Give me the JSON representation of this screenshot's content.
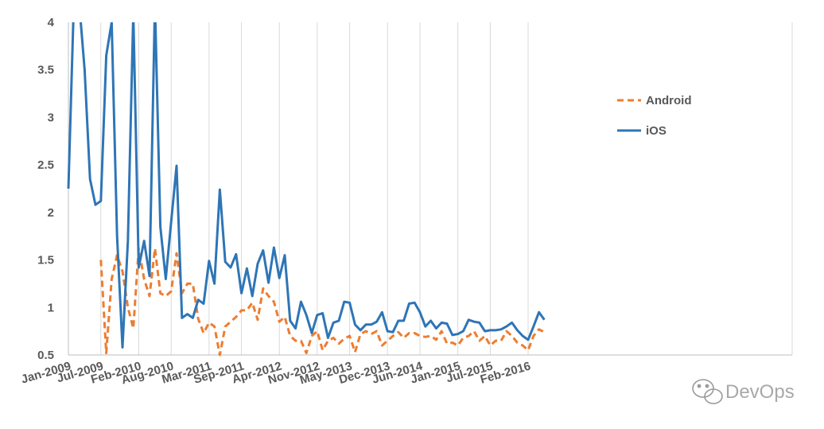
{
  "chart_data": {
    "type": "line",
    "title": "",
    "xlabel": "",
    "ylabel": "",
    "ylim": [
      0.5,
      4
    ],
    "ytick_labels": [
      "0.5",
      "1",
      "1.5",
      "2",
      "2.5",
      "3",
      "3.5",
      "4"
    ],
    "ytick_values": [
      0.5,
      1,
      1.5,
      2,
      2.5,
      3,
      3.5,
      4
    ],
    "x_start": "Jan-2009",
    "x_count": 89,
    "xtick_labels": [
      "Jan-2009",
      "Jul-2009",
      "Feb-2010",
      "Aug-2010",
      "Mar-2011",
      "Sep-2011",
      "Apr-2012",
      "Nov-2012",
      "May-2013",
      "Dec-2013",
      "Jun-2014",
      "Jan-2015",
      "Jul-2015",
      "Feb-2016"
    ],
    "xtick_index": [
      0,
      6,
      13,
      19,
      26,
      32,
      39,
      46,
      52,
      59,
      65,
      72,
      78,
      85
    ],
    "grid": "vertical",
    "legend_position": "top-right",
    "series": [
      {
        "name": "Android",
        "color": "#ED7D31",
        "dash": "dashed",
        "values": [
          null,
          null,
          null,
          null,
          null,
          null,
          1.5,
          0.52,
          1.3,
          1.55,
          1.38,
          1.0,
          0.78,
          1.62,
          1.3,
          1.12,
          1.62,
          1.15,
          1.12,
          1.17,
          1.57,
          1.15,
          1.25,
          1.25,
          0.88,
          0.73,
          0.84,
          0.8,
          0.5,
          0.8,
          0.85,
          0.9,
          0.97,
          0.97,
          1.05,
          0.87,
          1.2,
          1.12,
          1.06,
          0.85,
          0.9,
          0.7,
          0.65,
          0.65,
          0.52,
          0.7,
          0.75,
          0.55,
          0.65,
          0.68,
          0.62,
          0.67,
          0.7,
          0.53,
          0.72,
          0.75,
          0.72,
          0.75,
          0.6,
          0.65,
          0.7,
          0.74,
          0.68,
          0.73,
          0.73,
          0.7,
          0.69,
          0.7,
          0.66,
          0.75,
          0.62,
          0.63,
          0.6,
          0.68,
          0.7,
          0.75,
          0.65,
          0.7,
          0.6,
          0.65,
          0.65,
          0.75,
          0.7,
          0.63,
          0.6,
          0.55,
          0.7,
          0.77,
          0.74
        ]
      },
      {
        "name": "iOS",
        "color": "#2E75B6",
        "dash": "solid",
        "values": [
          2.25,
          4.2,
          4.2,
          3.5,
          2.35,
          2.08,
          2.12,
          3.65,
          4.0,
          1.75,
          0.58,
          1.7,
          4.1,
          1.42,
          1.7,
          1.33,
          4.2,
          1.85,
          1.3,
          1.9,
          2.49,
          0.89,
          0.93,
          0.89,
          1.08,
          1.04,
          1.49,
          1.25,
          2.24,
          1.48,
          1.42,
          1.56,
          1.15,
          1.41,
          1.12,
          1.46,
          1.6,
          1.26,
          1.63,
          1.31,
          1.55,
          0.86,
          0.78,
          1.06,
          0.92,
          0.73,
          0.92,
          0.94,
          0.68,
          0.84,
          0.86,
          1.06,
          1.05,
          0.82,
          0.76,
          0.82,
          0.82,
          0.85,
          0.95,
          0.75,
          0.74,
          0.86,
          0.86,
          1.04,
          1.05,
          0.95,
          0.8,
          0.86,
          0.78,
          0.84,
          0.83,
          0.71,
          0.72,
          0.75,
          0.87,
          0.85,
          0.84,
          0.75,
          0.76,
          0.76,
          0.77,
          0.8,
          0.84,
          0.76,
          0.7,
          0.66,
          0.8,
          0.95,
          0.87
        ]
      }
    ]
  },
  "watermark": {
    "text": "DevOps",
    "icon": "wechat-icon"
  }
}
